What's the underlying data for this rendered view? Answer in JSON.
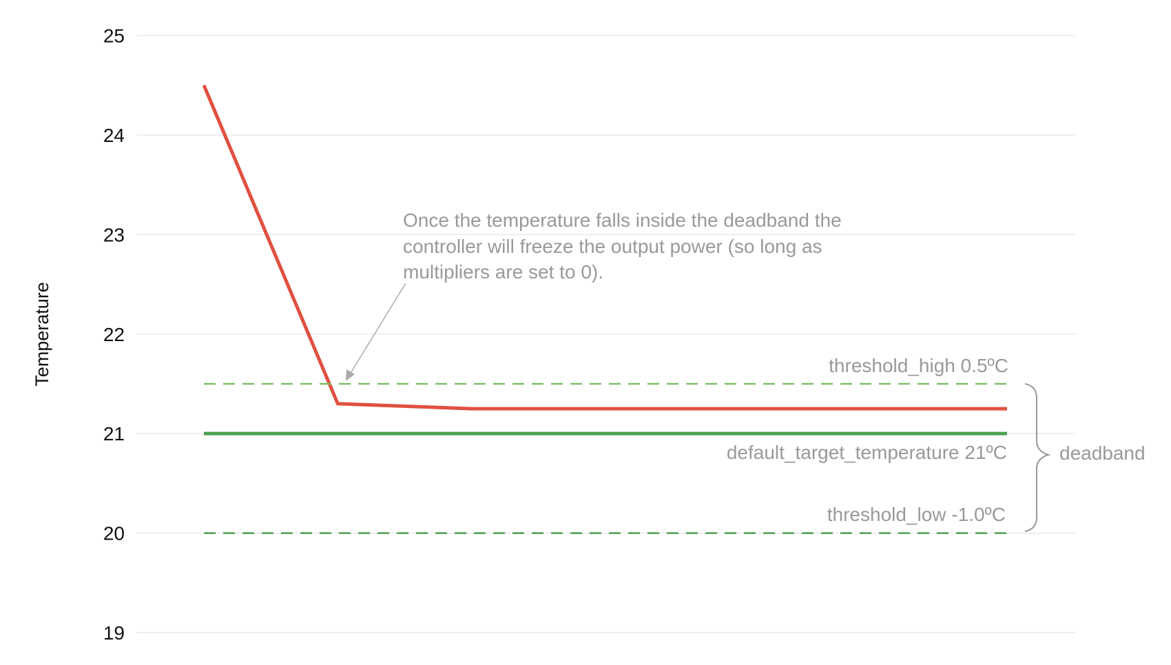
{
  "chart_data": {
    "type": "line",
    "title": "",
    "xlabel": "",
    "ylabel": "Temperature",
    "ylim": [
      19,
      25
    ],
    "yticks": [
      "19",
      "20",
      "21",
      "22",
      "23",
      "24",
      "25"
    ],
    "grid": true,
    "x": [
      0,
      1,
      2,
      3,
      4,
      5,
      6
    ],
    "series": [
      {
        "values": [
          24.5,
          21.3,
          21.25,
          21.25,
          21.25,
          21.25,
          21.25
        ],
        "color": "#e05040",
        "style": "solid"
      },
      {
        "values": [
          21,
          21,
          21,
          21,
          21,
          21,
          21
        ],
        "color": "#4ca050",
        "style": "solid"
      },
      {
        "values": [
          21.5,
          21.5,
          21.5,
          21.5,
          21.5,
          21.5,
          21.5
        ],
        "color": "#7cbf6a",
        "style": "dashed"
      },
      {
        "values": [
          20,
          20,
          20,
          20,
          20,
          20,
          20
        ],
        "color": "#4ca050",
        "style": "dashed"
      }
    ],
    "annotations": {
      "note_lines": [
        "Once the temperature falls inside the deadband the",
        "controller will freeze the output power (so long as",
        "multipliers are set to 0)."
      ],
      "threshold_high": "threshold_high  0.5ºC",
      "target": "default_target_temperature  21ºC",
      "threshold_low": "threshold_low  -1.0ºC",
      "deadband": "deadband"
    },
    "colors": {
      "grid": "#eeeeee",
      "annotation": "#999999",
      "axis_text": "#111111"
    }
  }
}
